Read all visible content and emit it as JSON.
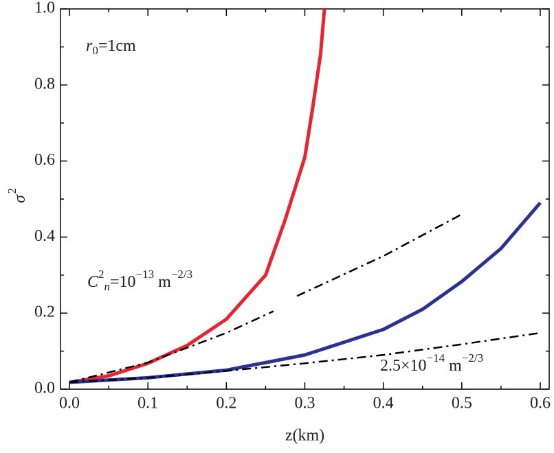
{
  "chart_data": {
    "type": "line",
    "xlabel": "z(km)",
    "ylabel": [
      {
        "t": "σ",
        "italic": true
      },
      {
        "t": "2",
        "shift": "sup"
      }
    ],
    "xlim": [
      -0.0114,
      0.6114
    ],
    "ylim": [
      0,
      1
    ],
    "xticks": [
      {
        "value": 0,
        "label": "0.0"
      },
      0.1,
      0.2,
      0.3,
      0.4,
      0.5,
      0.6
    ],
    "yticks": [
      {
        "value": 0,
        "label": "0.0"
      },
      0.2,
      0.4,
      0.6,
      0.8,
      {
        "value": 1,
        "label": "1.0"
      }
    ],
    "xminorticks": [
      0.05,
      0.15,
      0.25,
      0.35,
      0.45,
      0.55
    ],
    "yminorticks": [
      0.1,
      0.3,
      0.5,
      0.7,
      0.9
    ],
    "series": [
      {
        "color": "#e8252f",
        "style": "solid",
        "x": [
          0,
          0.05,
          0.1,
          0.15,
          0.2,
          0.25,
          0.275,
          0.3,
          0.31,
          0.32,
          0.325
        ],
        "values": [
          0.018,
          0.035,
          0.068,
          0.115,
          0.184,
          0.3,
          0.446,
          0.61,
          0.74,
          0.88,
          1.0
        ]
      },
      {
        "color": "#2b3391",
        "style": "solid",
        "x": [
          0,
          0.1,
          0.2,
          0.3,
          0.4,
          0.45,
          0.5,
          0.55,
          0.6
        ],
        "values": [
          0.018,
          0.03,
          0.05,
          0.09,
          0.157,
          0.21,
          0.283,
          0.37,
          0.49
        ]
      },
      {
        "color": "#000000",
        "style": "dashdot",
        "x": [
          0,
          0.1,
          0.2,
          0.26,
          0.27,
          0.29,
          0.4,
          0.5
        ],
        "values": [
          0.018,
          0.07,
          0.148,
          0.205,
          null,
          0.245,
          0.35,
          0.46
        ]
      },
      {
        "color": "#000000",
        "style": "dashdot",
        "x": [
          0,
          0.1,
          0.2,
          0.3,
          0.4,
          0.5,
          0.6
        ],
        "values": [
          0.018,
          0.03,
          0.048,
          0.068,
          0.09,
          0.118,
          0.148
        ]
      }
    ],
    "annotations": [
      [
        {
          "t": "r",
          "italic": true
        },
        {
          "t": "0",
          "shift": "sub"
        },
        {
          "t": "=1cm"
        }
      ],
      [
        {
          "t": "C",
          "italic": true
        },
        {
          "t": "2",
          "shift": "sup"
        },
        {
          "t": "n",
          "italic": true,
          "shift": "sub"
        },
        {
          "t": "=10"
        },
        {
          "t": "−13",
          "shift": "sup"
        },
        {
          "t": " m"
        },
        {
          "t": "−2/3",
          "shift": "sup"
        }
      ],
      [
        {
          "t": "2.5×10"
        },
        {
          "t": "−14",
          "shift": "sup"
        },
        {
          "t": " m"
        },
        {
          "t": "−2/3",
          "shift": "sup"
        }
      ]
    ]
  }
}
